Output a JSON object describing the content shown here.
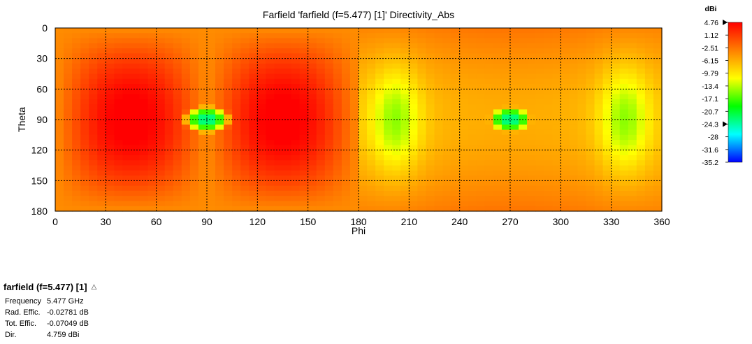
{
  "chart_data": {
    "type": "heatmap",
    "title": "Farfield 'farfield (f=5.477) [1]' Directivity_Abs",
    "xlabel": "Phi",
    "ylabel": "Theta",
    "xlim": [
      0,
      360
    ],
    "ylim": [
      0,
      180
    ],
    "x_ticks": [
      "0",
      "30",
      "60",
      "90",
      "120",
      "150",
      "180",
      "210",
      "240",
      "270",
      "300",
      "330",
      "360"
    ],
    "y_ticks": [
      "0",
      "30",
      "60",
      "90",
      "120",
      "150",
      "180"
    ],
    "y_axis_inverted": true,
    "grid": true,
    "grid_style": "dotted",
    "x_step_deg": 5,
    "y_step_deg": 5,
    "value_range": [
      -35.2,
      4.76
    ],
    "features": [
      {
        "phi": 90,
        "theta": 90,
        "value": -24.3,
        "kind": "null"
      },
      {
        "phi": 270,
        "theta": 90,
        "value": -24.3,
        "kind": "null"
      },
      {
        "phi": 45,
        "theta": 90,
        "value": 4.76,
        "kind": "maximum"
      },
      {
        "phi": 135,
        "theta": 90,
        "value": 4.76,
        "kind": "maximum"
      },
      {
        "phi": 200,
        "theta": 90,
        "value": -14.0,
        "kind": "minimum"
      },
      {
        "phi": 340,
        "theta": 90,
        "value": -14.0,
        "kind": "minimum"
      }
    ],
    "colorbar": {
      "unit": "dBi",
      "labels": [
        "4.76",
        "1.12",
        "-2.51",
        "-6.15",
        "-9.79",
        "-13.4",
        "-17.1",
        "-20.7",
        "-24.3",
        "-28",
        "-31.6",
        "-35.2"
      ],
      "colors": [
        "#ff0000",
        "#ff4000",
        "#ff8000",
        "#ffbf00",
        "#ffff00",
        "#80ff00",
        "#00ff00",
        "#00ff80",
        "#00ffff",
        "#0080ff",
        "#0000ff"
      ],
      "markers": [
        "4.76",
        "-24.3"
      ]
    }
  },
  "info": {
    "header": "farfield (f=5.477) [1]",
    "rows": [
      {
        "label": "Frequency",
        "value": "5.477 GHz"
      },
      {
        "label": "Rad. Effic.",
        "value": "-0.02781 dB"
      },
      {
        "label": "Tot. Effic.",
        "value": "-0.07049 dB"
      },
      {
        "label": "Dir.",
        "value": "4.759 dBi"
      }
    ]
  }
}
